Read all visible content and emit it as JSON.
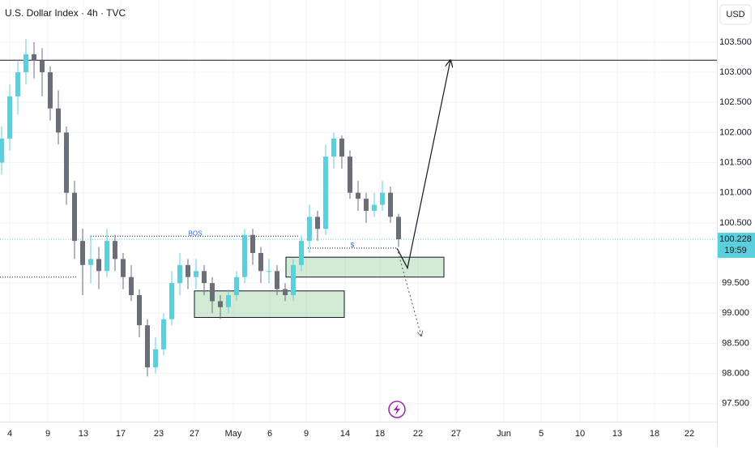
{
  "chart_data": {
    "type": "candlestick",
    "title": "U.S. Dollar Index · 4h · TVC",
    "currency": "USD",
    "up_color": "#5ccfdc",
    "down_color": "#6b6e78",
    "grid": true,
    "xlim": [
      -1.2,
      87.3
    ],
    "ylim": [
      97.2,
      104.2
    ],
    "xticks": [
      {
        "value": 0,
        "label": "4"
      },
      {
        "value": 4.7,
        "label": "9"
      },
      {
        "value": 9.1,
        "label": "13"
      },
      {
        "value": 13.7,
        "label": "17"
      },
      {
        "value": 18.4,
        "label": "23"
      },
      {
        "value": 22.8,
        "label": "27"
      },
      {
        "value": 27.6,
        "label": "May"
      },
      {
        "value": 32.1,
        "label": "6"
      },
      {
        "value": 36.6,
        "label": "9"
      },
      {
        "value": 41.4,
        "label": "14"
      },
      {
        "value": 45.7,
        "label": "18"
      },
      {
        "value": 50.4,
        "label": "22"
      },
      {
        "value": 55.1,
        "label": "27"
      },
      {
        "value": 61,
        "label": "Jun"
      },
      {
        "value": 65.6,
        "label": "5"
      },
      {
        "value": 70.4,
        "label": "10"
      },
      {
        "value": 75,
        "label": "13"
      },
      {
        "value": 79.6,
        "label": "18"
      },
      {
        "value": 83.9,
        "label": "22"
      }
    ],
    "yticks": [
      {
        "value": 103.5,
        "label": "103.500"
      },
      {
        "value": 103,
        "label": "103.000"
      },
      {
        "value": 102.5,
        "label": "102.500"
      },
      {
        "value": 102,
        "label": "102.000"
      },
      {
        "value": 101.5,
        "label": "101.500"
      },
      {
        "value": 101,
        "label": "101.000"
      },
      {
        "value": 100.5,
        "label": "100.500"
      },
      {
        "value": 99.5,
        "label": "99.500"
      },
      {
        "value": 99,
        "label": "99.000"
      },
      {
        "value": 98.5,
        "label": "98.500"
      },
      {
        "value": 98,
        "label": "98.000"
      },
      {
        "value": 97.5,
        "label": "97.500"
      }
    ],
    "last_price": 100.228,
    "countdown": "19:59",
    "x": [
      -1,
      0,
      1,
      2,
      3,
      4,
      5,
      6,
      7,
      8,
      9,
      10,
      11,
      12,
      13,
      14,
      15,
      16,
      17,
      18,
      19,
      20,
      21,
      22,
      23,
      24,
      25,
      26,
      27,
      28,
      29,
      30,
      31,
      32,
      33,
      34,
      35,
      36,
      37,
      38,
      39,
      40,
      41,
      42,
      43,
      44,
      45,
      46,
      47,
      48
    ],
    "open": [
      101.5,
      101.9,
      102.6,
      103.0,
      103.3,
      103.2,
      103.0,
      102.4,
      102.0,
      101.0,
      100.2,
      99.8,
      99.9,
      99.7,
      100.2,
      99.9,
      99.6,
      99.3,
      98.8,
      98.1,
      98.4,
      98.9,
      99.5,
      99.8,
      99.6,
      99.7,
      99.5,
      99.2,
      99.1,
      99.3,
      99.6,
      100.3,
      100.0,
      99.7,
      99.7,
      99.4,
      99.3,
      99.8,
      100.2,
      100.6,
      100.4,
      101.6,
      101.9,
      101.6,
      101.0,
      100.9,
      100.7,
      100.8,
      101.0,
      100.6
    ],
    "high": [
      102.1,
      102.8,
      103.2,
      103.55,
      103.5,
      103.4,
      103.1,
      102.7,
      102.1,
      101.2,
      100.4,
      100.3,
      100.1,
      100.4,
      100.3,
      100.0,
      99.8,
      99.4,
      98.9,
      98.6,
      99.0,
      99.7,
      100.0,
      99.9,
      99.9,
      99.8,
      99.6,
      99.3,
      99.4,
      99.7,
      100.4,
      100.4,
      100.1,
      99.9,
      99.8,
      99.5,
      99.9,
      100.3,
      100.8,
      100.7,
      101.8,
      102.0,
      101.95,
      101.7,
      101.2,
      101.0,
      101.0,
      101.2,
      101.1,
      100.65
    ],
    "low": [
      101.3,
      101.7,
      102.3,
      102.8,
      102.9,
      102.6,
      102.2,
      101.8,
      100.8,
      99.9,
      99.3,
      99.5,
      99.4,
      99.6,
      99.7,
      99.4,
      99.2,
      98.6,
      97.95,
      98.0,
      98.3,
      98.8,
      99.3,
      99.4,
      99.4,
      99.3,
      99.0,
      98.9,
      99.0,
      99.2,
      99.5,
      99.8,
      99.5,
      99.5,
      99.3,
      99.2,
      99.2,
      99.7,
      100.0,
      100.2,
      100.3,
      101.4,
      101.4,
      100.9,
      100.7,
      100.5,
      100.6,
      100.7,
      100.5,
      100.1
    ],
    "close": [
      101.9,
      102.6,
      103.0,
      103.3,
      103.2,
      103.0,
      102.4,
      102.0,
      101.0,
      100.2,
      99.8,
      99.9,
      99.7,
      100.2,
      99.9,
      99.6,
      99.3,
      98.8,
      98.1,
      98.4,
      98.9,
      99.5,
      99.8,
      99.6,
      99.7,
      99.5,
      99.2,
      99.1,
      99.3,
      99.6,
      100.3,
      100.0,
      99.7,
      99.7,
      99.4,
      99.3,
      99.8,
      100.2,
      100.6,
      100.4,
      101.6,
      101.9,
      101.6,
      101.0,
      100.9,
      100.7,
      100.8,
      101.0,
      100.6,
      100.228
    ],
    "resistance": 103.2,
    "bos": {
      "label": "BOS",
      "price": 100.28,
      "x": [
        10,
        35.8
      ]
    },
    "liquidity": {
      "label": "$",
      "price": 100.08,
      "x": [
        36.8,
        47.8
      ]
    },
    "left_level": {
      "price": 99.6,
      "x": [
        -1.2,
        8.3
      ]
    },
    "zones": [
      {
        "x": [
          22.8,
          41.3
        ],
        "price": [
          98.93,
          99.37
        ]
      },
      {
        "x": [
          34.1,
          53.6
        ],
        "price": [
          99.6,
          99.93
        ]
      }
    ],
    "projection": {
      "x": [
        47.8,
        49.1,
        54.4
      ],
      "price": [
        100.08,
        99.75,
        103.2
      ]
    },
    "alternative": {
      "x": [
        47.8,
        50.8
      ],
      "price": [
        100.08,
        98.62
      ]
    }
  }
}
